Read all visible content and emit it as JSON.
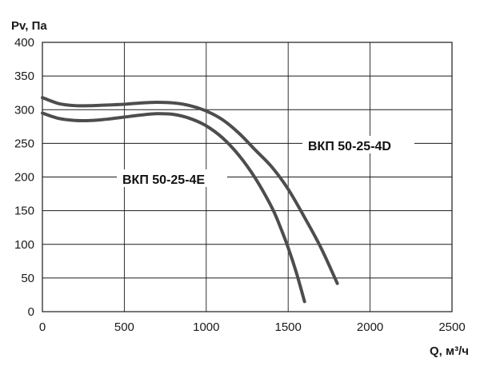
{
  "chart_data": {
    "type": "line",
    "xlabel": "Q, м³/ч",
    "ylabel": "Pv, Па",
    "xlim": [
      0,
      2500
    ],
    "ylim": [
      0,
      400
    ],
    "xticks": [
      "0",
      "500",
      "1000",
      "1500",
      "2000",
      "2500"
    ],
    "yticks": [
      "0",
      "50",
      "100",
      "150",
      "200",
      "250",
      "300",
      "350",
      "400"
    ],
    "grid": true,
    "line_color": "#4d4d4d",
    "series": [
      {
        "name": "ВКП 50-25-4D",
        "x": [
          0,
          100,
          200,
          300,
          400,
          500,
          600,
          700,
          800,
          900,
          1000,
          1100,
          1200,
          1300,
          1400,
          1500,
          1600,
          1700,
          1800
        ],
        "y": [
          318,
          309,
          306,
          306,
          307,
          308,
          310,
          311,
          310,
          306,
          298,
          285,
          265,
          240,
          215,
          182,
          140,
          95,
          42
        ]
      },
      {
        "name": "ВКП 50-25-4E",
        "x": [
          0,
          100,
          200,
          300,
          400,
          500,
          600,
          700,
          800,
          900,
          1000,
          1100,
          1200,
          1300,
          1400,
          1450,
          1500,
          1550,
          1600
        ],
        "y": [
          295,
          287,
          284,
          284,
          286,
          289,
          292,
          294,
          293,
          287,
          276,
          258,
          232,
          198,
          155,
          127,
          95,
          58,
          15
        ]
      }
    ]
  }
}
